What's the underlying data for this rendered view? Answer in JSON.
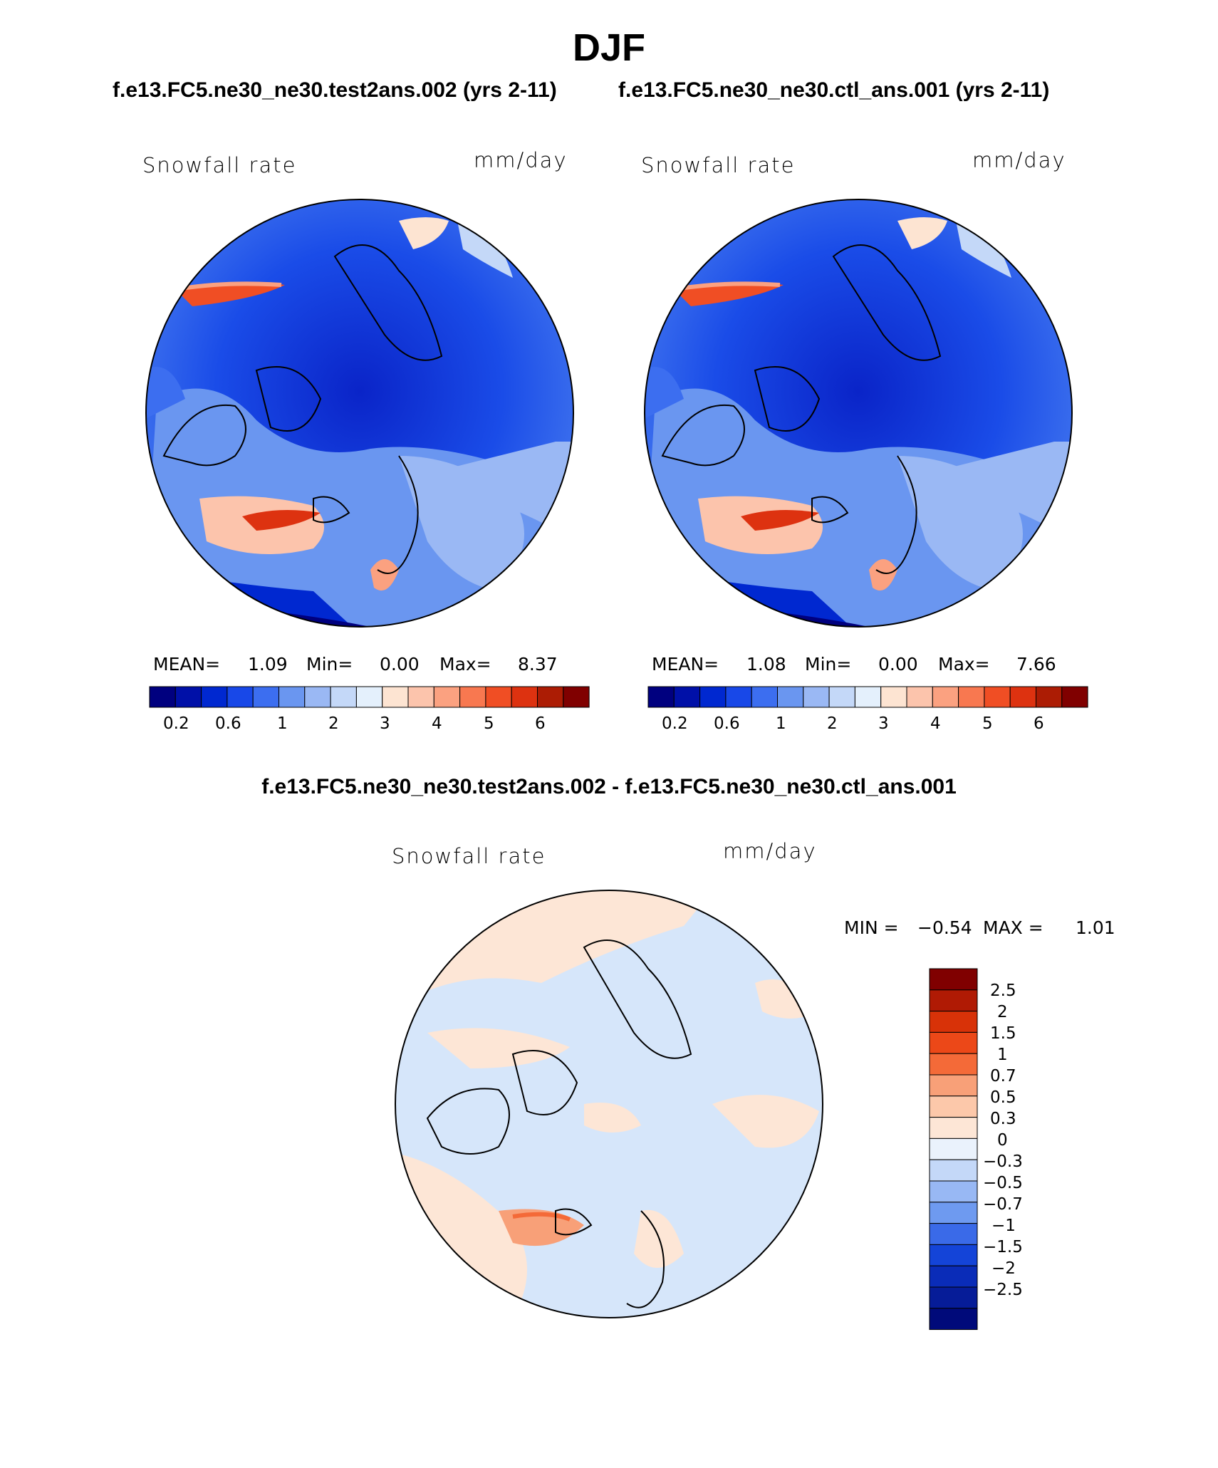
{
  "title": "DJF",
  "panels": [
    {
      "id": "test",
      "heading": "f.e13.FC5.ne30_ne30.test2ans.002 (yrs 2-11)",
      "variable": "Snowfall rate",
      "units": "mm/day",
      "stats": {
        "mean_label": "MEAN=",
        "mean": "1.09",
        "min_label": "Min=",
        "min": "0.00",
        "max_label": "Max=",
        "max": "8.37"
      }
    },
    {
      "id": "ctl",
      "heading": "f.e13.FC5.ne30_ne30.ctl_ans.001 (yrs 2-11)",
      "variable": "Snowfall rate",
      "units": "mm/day",
      "stats": {
        "mean_label": "MEAN=",
        "mean": "1.08",
        "min_label": "Min=",
        "min": "0.00",
        "max_label": "Max=",
        "max": "7.66"
      }
    }
  ],
  "horizontal_colorbar": {
    "colors": [
      "#00007f",
      "#0010a8",
      "#0028d0",
      "#1848e8",
      "#3c6ef0",
      "#6a96f0",
      "#9ab8f4",
      "#c4d8f8",
      "#e4f0fc",
      "#fde4d2",
      "#fcc4ac",
      "#fba180",
      "#f87850",
      "#f04e24",
      "#dd3210",
      "#ac1c04",
      "#800000"
    ],
    "tick_labels": [
      "0.2",
      "0.6",
      "1",
      "2",
      "3",
      "4",
      "5",
      "6"
    ]
  },
  "difference": {
    "heading": "f.e13.FC5.ne30_ne30.test2ans.002 - f.e13.FC5.ne30_ne30.ctl_ans.001",
    "variable": "Snowfall rate",
    "units": "mm/day",
    "min_label": "MIN =",
    "min": "−0.54",
    "max_label": "MAX =",
    "max": "1.01",
    "colorbar": {
      "colors_top_to_bottom": [
        "#800000",
        "#b01a04",
        "#d83208",
        "#ec4818",
        "#f46a38",
        "#f8a078",
        "#fcc8aa",
        "#fde6d6",
        "#eaf2fc",
        "#c4d8f8",
        "#98b8f4",
        "#6e9af0",
        "#3a6ae8",
        "#1444d8",
        "#0a2cb8",
        "#061c98",
        "#000a7a"
      ],
      "tick_labels": [
        "2.5",
        "2",
        "1.5",
        "1",
        "0.7",
        "0.5",
        "0.3",
        "0",
        "−0.3",
        "−0.5",
        "−0.7",
        "−1",
        "−1.5",
        "−2",
        "−2.5"
      ]
    }
  }
}
